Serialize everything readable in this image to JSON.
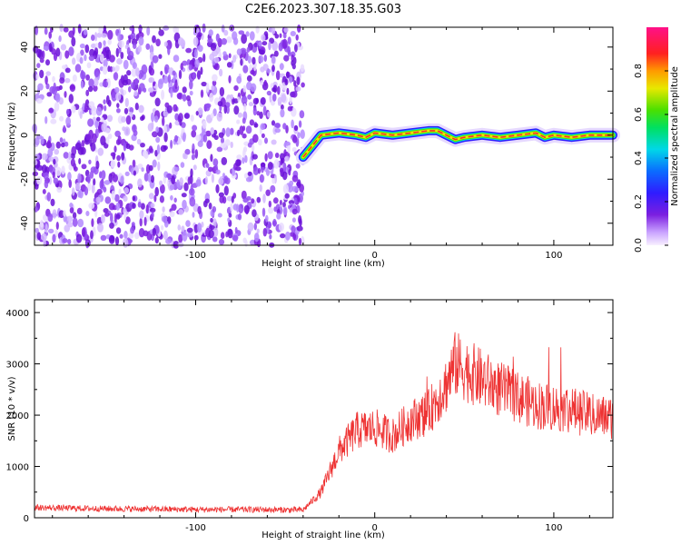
{
  "figure_title": "C2E6.2023.307.18.35.G03",
  "colors": {
    "noise_purple": "#7b1fe0",
    "signal_red": "#f03030",
    "snr_line": "#ee3333"
  },
  "chart_data": [
    {
      "type": "heatmap",
      "xlabel": "Height of straight line (km)",
      "ylabel": "Frequency (Hz)",
      "xlim": [
        -190,
        133
      ],
      "ylim": [
        -50,
        49
      ],
      "xticks": [
        -100,
        0,
        100
      ],
      "yticks": [
        -40,
        -20,
        0,
        20,
        40
      ],
      "noise_region_x": [
        -190,
        -40
      ],
      "signal_track": {
        "x": [
          -40,
          -35,
          -30,
          -20,
          -10,
          -5,
          0,
          10,
          20,
          30,
          35,
          40,
          45,
          50,
          60,
          70,
          80,
          90,
          95,
          100,
          110,
          120,
          133
        ],
        "freq": [
          -10,
          -5,
          0,
          1,
          0,
          -1,
          1,
          0,
          1,
          2,
          2,
          0,
          -2,
          -1,
          0,
          -1,
          0,
          1,
          -1,
          0,
          -1,
          0,
          0
        ]
      },
      "colorbar": {
        "label": "Normalized spectral amplitude",
        "range": [
          0,
          1
        ],
        "ticks": [
          0.0,
          0.2,
          0.4,
          0.6,
          0.8
        ]
      }
    },
    {
      "type": "line",
      "xlabel": "Height of straight line (km)",
      "ylabel": "SNR (10 * v/v)",
      "xlim": [
        -190,
        133
      ],
      "ylim": [
        0,
        4250
      ],
      "xticks": [
        -100,
        0,
        100
      ],
      "yticks": [
        0,
        1000,
        2000,
        3000,
        4000
      ],
      "series": [
        {
          "x": [
            -190,
            -160,
            -130,
            -100,
            -70,
            -40,
            -30,
            -25,
            -20,
            -10,
            0,
            10,
            20,
            30,
            40,
            45,
            50,
            60,
            70,
            80,
            90,
            100,
            110,
            120,
            133
          ],
          "values": [
            200,
            180,
            170,
            160,
            160,
            150,
            500,
            900,
            1300,
            1700,
            1750,
            1600,
            1900,
            2050,
            2600,
            3000,
            2900,
            2700,
            2500,
            2350,
            2200,
            2150,
            2100,
            2000,
            1950
          ]
        }
      ]
    }
  ]
}
